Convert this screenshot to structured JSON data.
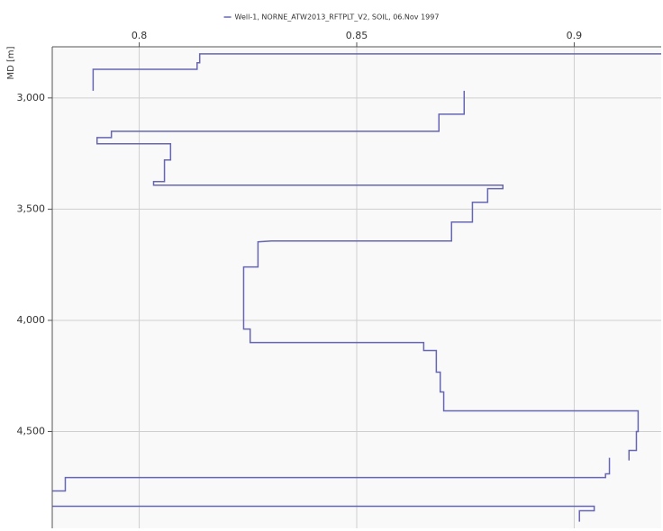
{
  "chart_data": {
    "type": "line",
    "legend_position": "top",
    "grid": true,
    "y_inverted": true,
    "ylabel": "MD [m]",
    "xlim": [
      0.78,
      0.92
    ],
    "xticks": [
      0.8,
      0.85,
      0.9
    ],
    "ylim": [
      2770,
      4935
    ],
    "yticks": [
      {
        "value": 3000,
        "label": "3,000"
      },
      {
        "value": 3500,
        "label": "3,500"
      },
      {
        "value": 4000,
        "label": "4,000"
      },
      {
        "value": 4500,
        "label": "4,500"
      }
    ],
    "series": [
      {
        "name": "Well-1, NORNE_ATW2013_RFTPLT_V2, SOIL, 06.Nov 1997",
        "color": "#6666b3",
        "x": [
          0.92,
          0.8139,
          0.8139,
          0.8133,
          0.8133,
          0.7894,
          0.7894,
          null,
          0.8747,
          0.8747,
          0.8689,
          0.8689,
          0.7936,
          0.7936,
          0.7903,
          0.7903,
          0.8072,
          0.8072,
          0.8058,
          0.8058,
          0.8033,
          0.8033,
          0.8836,
          0.8836,
          0.8801,
          0.8801,
          0.8766,
          0.8766,
          0.8718,
          0.8718,
          0.8304,
          0.8273,
          0.8273,
          0.824,
          0.824,
          0.8255,
          0.8255,
          0.8654,
          0.8654,
          0.8683,
          0.8683,
          0.8692,
          0.8692,
          0.87,
          0.87,
          0.9147,
          0.9147,
          0.9143,
          0.9143,
          0.9126,
          0.9126,
          null,
          0.9081,
          0.9081,
          0.9072,
          0.9072,
          0.783,
          0.783,
          0.7801,
          null,
          0.7801,
          0.9046,
          0.9046,
          0.9012,
          0.9012
        ],
        "y": [
          2802,
          2802,
          2842,
          2842,
          2871,
          2871,
          2968,
          null,
          2968,
          3073,
          3073,
          3150,
          3150,
          3178,
          3178,
          3206,
          3206,
          3279,
          3279,
          3376,
          3376,
          3392,
          3392,
          3408,
          3408,
          3469,
          3469,
          3558,
          3558,
          3643,
          3643,
          3647,
          3760,
          3760,
          4039,
          4039,
          4100,
          4100,
          4136,
          4136,
          4233,
          4233,
          4322,
          4322,
          4407,
          4407,
          4500,
          4500,
          4585,
          4585,
          4630,
          null,
          4618,
          4690,
          4690,
          4707,
          4707,
          4767,
          4767,
          null,
          4836,
          4836,
          4856,
          4856,
          4905
        ]
      }
    ]
  }
}
